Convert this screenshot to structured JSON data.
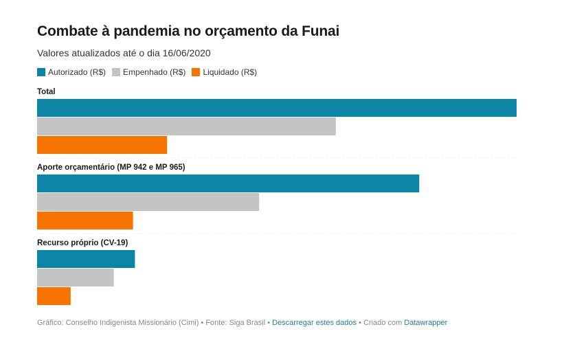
{
  "title": "Combate à pandemia no orçamento da Funai",
  "subtitle": "Valores atualizados até o dia 16/06/2020",
  "colors": {
    "autorizado": "#0b84a5",
    "empenhado": "#c4c4c4",
    "liquidado": "#f67500",
    "separator": "#e0e0e0",
    "link": "#1d81a2"
  },
  "footer": {
    "source_text": "Gráfico: Conselho Indigenista Missionário (Cimi) • Fonte: Siga Brasil • ",
    "download_link": "Descarregar estes dados",
    "created_text": " • Criado com ",
    "datawrapper_link": "Datawrapper"
  },
  "chart_data": {
    "type": "bar",
    "orientation": "horizontal",
    "title": "Combate à pandemia no orçamento da Funai",
    "subtitle": "Valores atualizados até o dia 16/06/2020",
    "xlabel": "",
    "ylabel": "",
    "xlim": [
      0,
      100
    ],
    "grid": false,
    "legend_position": "top-left",
    "categories": [
      "Total",
      "Aporte orçamentário (MP 942 e MP 965)",
      "Recurso próprio (CV-19)"
    ],
    "series": [
      {
        "name": "Autorizado (R$)",
        "color": "#0b84a5",
        "values": [
          100,
          79.7,
          20.4
        ]
      },
      {
        "name": "Empenhado (R$)",
        "color": "#c4c4c4",
        "values": [
          62.3,
          46.3,
          16.0
        ]
      },
      {
        "name": "Liquidado (R$)",
        "color": "#f67500",
        "values": [
          27.1,
          20.0,
          7.0
        ]
      }
    ]
  }
}
